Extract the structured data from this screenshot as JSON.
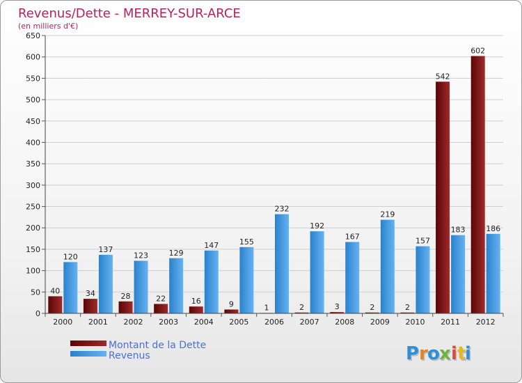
{
  "chart_data": {
    "type": "bar",
    "title": "Revenus/Dette - MERREY-SUR-ARCE",
    "subtitle": "(en milliers d'€)",
    "categories": [
      "2000",
      "2001",
      "2002",
      "2003",
      "2004",
      "2005",
      "2006",
      "2007",
      "2008",
      "2009",
      "2010",
      "2011",
      "2012"
    ],
    "series": [
      {
        "name": "Montant de la Dette",
        "values": [
          40,
          34,
          28,
          22,
          16,
          9,
          1,
          2,
          3,
          2,
          2,
          542,
          602
        ]
      },
      {
        "name": "Revenus",
        "values": [
          120,
          137,
          123,
          129,
          147,
          155,
          232,
          192,
          167,
          219,
          157,
          183,
          186
        ]
      }
    ],
    "ylim": [
      0,
      650
    ],
    "yticks": [
      0,
      50,
      100,
      150,
      200,
      250,
      300,
      350,
      400,
      450,
      500,
      550,
      600,
      650
    ],
    "grid": true,
    "legend_position": "bottom-left"
  },
  "colors": {
    "debt": "#7a0f0f",
    "debt_light": "#a83232",
    "revenue": "#3a93dd",
    "revenue_light": "#62aef0",
    "title": "#b5225a",
    "legend_text": "#4a6fd8"
  },
  "logo": {
    "letters": [
      "P",
      "r",
      "o",
      "x",
      "i",
      "t",
      "i"
    ],
    "colors": [
      "#2e8fd8",
      "#e0822a",
      "#2e8fd8",
      "#6cb33f",
      "#d94c3d",
      "#e3b92a",
      "#2e8fd8"
    ]
  }
}
